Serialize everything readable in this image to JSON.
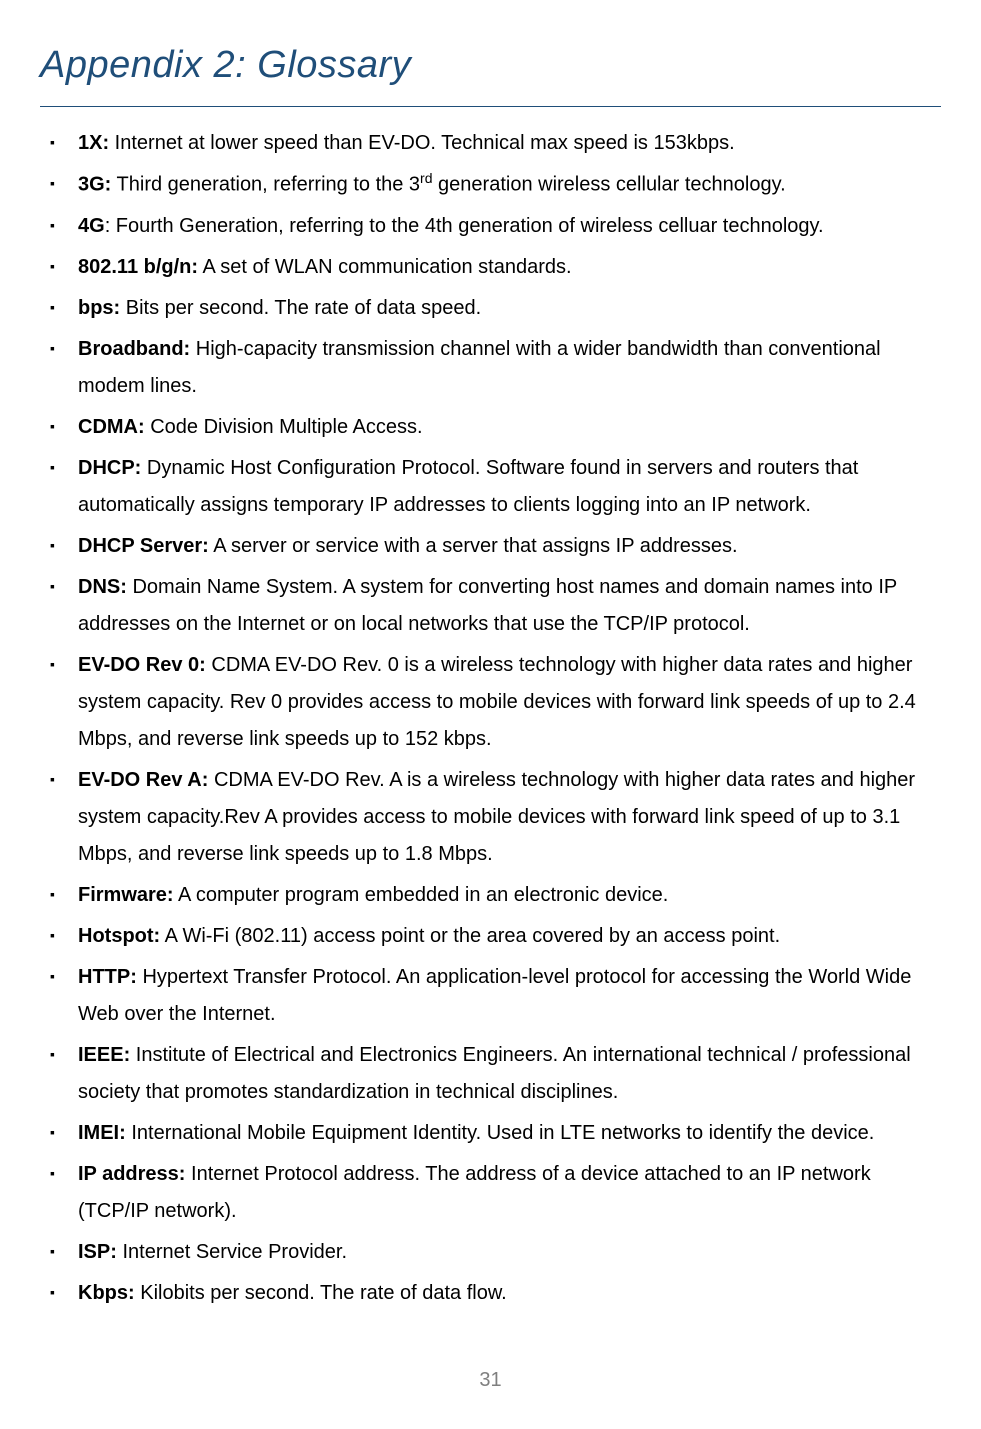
{
  "page": {
    "title": "Appendix 2: Glossary",
    "page_number": "31",
    "title_color": "#1f4e79",
    "divider_color": "#1f4e79",
    "body_font_size": 20,
    "title_font_size": 38
  },
  "items": [
    {
      "term": "1X:",
      "def": "  Internet at lower speed than EV-DO. Technical max speed is 153kbps."
    },
    {
      "term": "3G:",
      "def": "  Third generation, referring to the 3",
      "sup": "rd",
      "def2": " generation wireless cellular technology."
    },
    {
      "term": "4G",
      "def": ": Fourth Generation, referring to the 4th generation of wireless celluar technology."
    },
    {
      "term": "802.11 b/g/n:",
      "def": " A set of WLAN communication standards."
    },
    {
      "term": "bps:",
      "def": " Bits per second. The rate of data speed."
    },
    {
      "term": "Broadband:",
      "def": " High-capacity transmission channel with a wider bandwidth than conventional modem lines."
    },
    {
      "term": "CDMA:",
      "def": " Code Division Multiple Access."
    },
    {
      "term": "DHCP:",
      "def": " Dynamic Host Configuration Protocol. Software found in servers and routers that automatically assigns temporary IP addresses to clients logging into an IP network."
    },
    {
      "term": "DHCP Server:",
      "def": "  A server or service with a server that assigns IP addresses."
    },
    {
      "term": "DNS:",
      "def": "  Domain Name System. A system for converting host names and domain names into IP addresses on the Internet or on local networks that use the TCP/IP protocol."
    },
    {
      "term": "EV-DO Rev 0:",
      "def": " CDMA EV-DO Rev. 0 is a wireless technology with higher data rates and higher system capacity. Rev 0 provides access to mobile devices with forward link speeds of up to 2.4 Mbps, and reverse link speeds up to 152 kbps."
    },
    {
      "term": "EV-DO Rev A:",
      "def": " CDMA EV-DO Rev. A is a wireless technology with higher data rates and higher system capacity.Rev A provides access to mobile devices with forward link speed of up to 3.1 Mbps, and reverse link speeds up to 1.8 Mbps."
    },
    {
      "term": "Firmware:",
      "def": " A computer program embedded in an electronic device."
    },
    {
      "term": "Hotspot:",
      "def": " A Wi-Fi (802.11) access point or the area covered by an access point."
    },
    {
      "term": "HTTP:",
      "def": " Hypertext Transfer Protocol. An application-level protocol for accessing the World Wide Web over the Internet."
    },
    {
      "term": "IEEE:",
      "def": " Institute of Electrical and Electronics Engineers. An international technical / professional society that promotes standardization in technical disciplines."
    },
    {
      "term": "IMEI:",
      "def": " International Mobile Equipment Identity. Used in LTE networks to identify the device."
    },
    {
      "term": "IP address:",
      "def": " Internet Protocol address. The address of a device attached to an IP network (TCP/IP network)."
    },
    {
      "term": "ISP:",
      "def": "  Internet Service Provider."
    },
    {
      "term": "Kbps:",
      "def": "  Kilobits per second. The rate of data flow."
    }
  ]
}
